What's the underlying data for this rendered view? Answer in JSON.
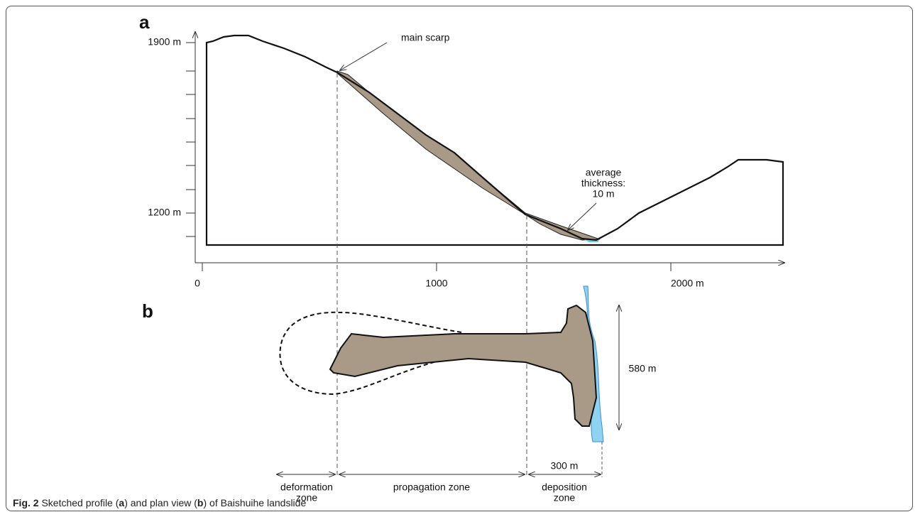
{
  "panel_a": {
    "label": "a",
    "y_labels": [
      "1900 m",
      "1200 m"
    ],
    "x_labels": [
      "0",
      "1000",
      "2000 m"
    ],
    "main_scarp": "main scarp",
    "thickness": [
      "average",
      "thickness:",
      "10 m"
    ]
  },
  "panel_b": {
    "label": "b",
    "width": "580 m",
    "deposition_length": "300 m"
  },
  "zones": {
    "deformation": [
      "deformation",
      "zone"
    ],
    "propagation": "propagation zone",
    "deposition": [
      "deposition",
      "zone"
    ]
  },
  "caption": {
    "fig": "Fig. 2",
    "parts": [
      "Sketched profile (",
      "a",
      ") and plan view (",
      "b",
      ") of Baishuihe landslide"
    ]
  }
}
